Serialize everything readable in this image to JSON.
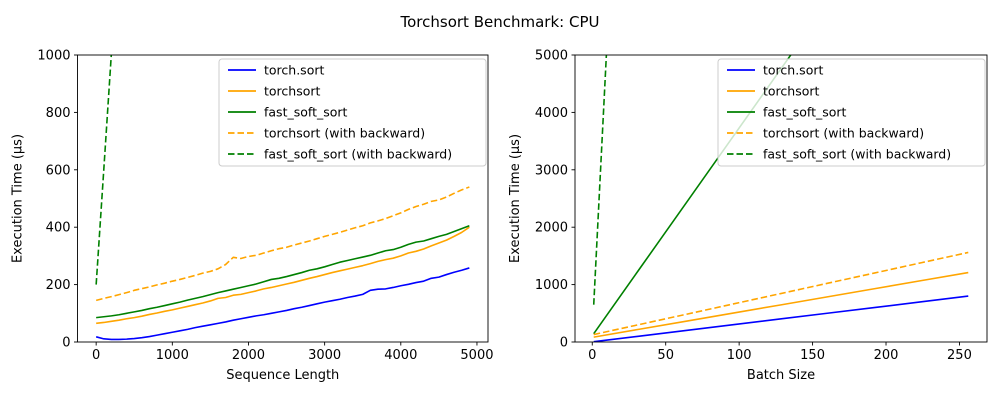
{
  "title": "Torchsort Benchmark: CPU",
  "colors": {
    "torch_sort": "#0000ff",
    "torchsort": "#ffa500",
    "fast_soft_sort": "#008000",
    "axis": "#000000",
    "legend_border": "#cccccc",
    "legend_bg": "#ffffff"
  },
  "legend_labels": [
    "torch.sort",
    "torchsort",
    "fast_soft_sort",
    "torchsort (with backward)",
    "fast_soft_sort (with backward)"
  ],
  "chart_data": [
    {
      "type": "line",
      "name": "left-plot",
      "xlabel": "Sequence Length",
      "ylabel": "Execution Time (µs)",
      "xticks": [
        0,
        1000,
        2000,
        3000,
        4000,
        5000
      ],
      "yticks": [
        0,
        200,
        400,
        600,
        800,
        1000
      ],
      "x_view": [
        -245,
        5145
      ],
      "ylim": [
        0,
        1000
      ],
      "grid": false,
      "legend_position": "upper right",
      "series": [
        {
          "key": "torch-sort",
          "label": "torch.sort",
          "color": "#0000ff",
          "dash": false,
          "x": [
            0,
            100,
            200,
            300,
            400,
            500,
            600,
            700,
            800,
            900,
            1000,
            1100,
            1200,
            1300,
            1400,
            1500,
            1600,
            1700,
            1800,
            1900,
            2000,
            2100,
            2200,
            2300,
            2400,
            2500,
            2600,
            2700,
            2800,
            2900,
            3000,
            3100,
            3200,
            3300,
            3400,
            3500,
            3600,
            3700,
            3800,
            3900,
            4000,
            4100,
            4200,
            4300,
            4400,
            4500,
            4600,
            4700,
            4800,
            4900
          ],
          "values": [
            18,
            11,
            9,
            9,
            10,
            12,
            15,
            19,
            24,
            29,
            34,
            39,
            44,
            50,
            55,
            60,
            65,
            70,
            76,
            81,
            86,
            91,
            95,
            100,
            105,
            110,
            116,
            121,
            127,
            133,
            139,
            144,
            149,
            155,
            160,
            166,
            180,
            184,
            185,
            190,
            196,
            201,
            207,
            212,
            222,
            226,
            235,
            243,
            250,
            258
          ]
        },
        {
          "key": "torchsort",
          "label": "torchsort",
          "color": "#ffa500",
          "dash": false,
          "x": [
            0,
            100,
            200,
            300,
            400,
            500,
            600,
            700,
            800,
            900,
            1000,
            1100,
            1200,
            1300,
            1400,
            1500,
            1600,
            1700,
            1800,
            1900,
            2000,
            2100,
            2200,
            2300,
            2400,
            2500,
            2600,
            2700,
            2800,
            2900,
            3000,
            3100,
            3200,
            3300,
            3400,
            3500,
            3600,
            3700,
            3800,
            3900,
            4000,
            4100,
            4200,
            4300,
            4400,
            4500,
            4600,
            4700,
            4800,
            4900
          ],
          "values": [
            65,
            68,
            72,
            76,
            81,
            85,
            90,
            96,
            101,
            107,
            112,
            118,
            124,
            130,
            136,
            143,
            152,
            155,
            163,
            166,
            172,
            178,
            185,
            190,
            196,
            202,
            208,
            215,
            222,
            228,
            235,
            242,
            248,
            254,
            260,
            266,
            273,
            281,
            287,
            292,
            300,
            310,
            316,
            324,
            335,
            345,
            355,
            368,
            382,
            400
          ]
        },
        {
          "key": "fast-soft-sort",
          "label": "fast_soft_sort",
          "color": "#008000",
          "dash": false,
          "x": [
            0,
            100,
            200,
            300,
            400,
            500,
            600,
            700,
            800,
            900,
            1000,
            1100,
            1200,
            1300,
            1400,
            1500,
            1600,
            1700,
            1800,
            1900,
            2000,
            2100,
            2200,
            2300,
            2400,
            2500,
            2600,
            2700,
            2800,
            2900,
            3000,
            3100,
            3200,
            3300,
            3400,
            3500,
            3600,
            3700,
            3800,
            3900,
            4000,
            4100,
            4200,
            4300,
            4400,
            4500,
            4600,
            4700,
            4800,
            4900
          ],
          "values": [
            85,
            88,
            91,
            95,
            100,
            105,
            110,
            116,
            121,
            127,
            133,
            139,
            146,
            152,
            158,
            165,
            172,
            178,
            184,
            190,
            196,
            202,
            210,
            218,
            222,
            228,
            235,
            242,
            250,
            255,
            262,
            270,
            278,
            284,
            290,
            296,
            302,
            310,
            318,
            322,
            330,
            340,
            348,
            352,
            360,
            368,
            375,
            385,
            395,
            405
          ]
        },
        {
          "key": "torchsort-backward",
          "label": "torchsort (with backward)",
          "color": "#ffa500",
          "dash": true,
          "x": [
            0,
            100,
            200,
            300,
            400,
            500,
            600,
            700,
            800,
            900,
            1000,
            1100,
            1200,
            1300,
            1400,
            1500,
            1600,
            1700,
            1800,
            1900,
            2000,
            2100,
            2200,
            2300,
            2400,
            2500,
            2600,
            2700,
            2800,
            2900,
            3000,
            3100,
            3200,
            3300,
            3400,
            3500,
            3600,
            3700,
            3800,
            3900,
            4000,
            4100,
            4200,
            4300,
            4400,
            4500,
            4600,
            4700,
            4800,
            4900
          ],
          "values": [
            145,
            152,
            158,
            165,
            172,
            180,
            186,
            192,
            199,
            205,
            212,
            218,
            225,
            232,
            240,
            246,
            255,
            270,
            295,
            291,
            298,
            302,
            310,
            318,
            325,
            330,
            338,
            345,
            352,
            360,
            368,
            375,
            382,
            390,
            398,
            405,
            415,
            422,
            430,
            440,
            450,
            462,
            472,
            480,
            490,
            495,
            505,
            518,
            530,
            540
          ]
        },
        {
          "key": "fast-soft-sort-backward",
          "label": "fast_soft_sort (with backward)",
          "color": "#008000",
          "dash": true,
          "x": [
            0,
            100,
            200,
            300
          ],
          "values": [
            200,
            600,
            1005,
            1410
          ]
        }
      ]
    },
    {
      "type": "line",
      "name": "right-plot",
      "xlabel": "Batch Size",
      "ylabel": "Execution Time (µs)",
      "xticks": [
        0,
        50,
        100,
        150,
        200,
        250
      ],
      "yticks": [
        0,
        1000,
        2000,
        3000,
        4000,
        5000
      ],
      "x_view": [
        -11.75,
        268.75
      ],
      "ylim": [
        0,
        5000
      ],
      "grid": false,
      "legend_position": "upper right",
      "series": [
        {
          "key": "torch-sort",
          "label": "torch.sort",
          "color": "#0000ff",
          "dash": false,
          "x": [
            1,
            32,
            64,
            96,
            128,
            160,
            192,
            224,
            256
          ],
          "values": [
            5,
            102,
            201,
            301,
            401,
            501,
            600,
            700,
            800
          ]
        },
        {
          "key": "torchsort",
          "label": "torchsort",
          "color": "#ffa500",
          "dash": false,
          "x": [
            1,
            32,
            64,
            96,
            128,
            160,
            192,
            224,
            256
          ],
          "values": [
            85,
            222,
            363,
            504,
            645,
            786,
            928,
            1069,
            1210
          ]
        },
        {
          "key": "fast-soft-sort",
          "label": "fast_soft_sort",
          "color": "#008000",
          "dash": false,
          "x": [
            1,
            32,
            64,
            96,
            128,
            160
          ],
          "values": [
            145,
            1267,
            2425,
            3584,
            4742,
            5901
          ]
        },
        {
          "key": "torchsort-backward",
          "label": "torchsort (with backward)",
          "color": "#ffa500",
          "dash": true,
          "x": [
            1,
            32,
            64,
            96,
            128,
            160,
            192,
            224,
            256
          ],
          "values": [
            130,
            304,
            483,
            663,
            842,
            1022,
            1201,
            1381,
            1560
          ]
        },
        {
          "key": "fast-soft-sort-backward",
          "label": "fast_soft_sort (with backward)",
          "color": "#008000",
          "dash": true,
          "x": [
            1,
            4,
            8,
            12
          ],
          "values": [
            650,
            2165,
            4185,
            6205
          ]
        }
      ]
    }
  ]
}
